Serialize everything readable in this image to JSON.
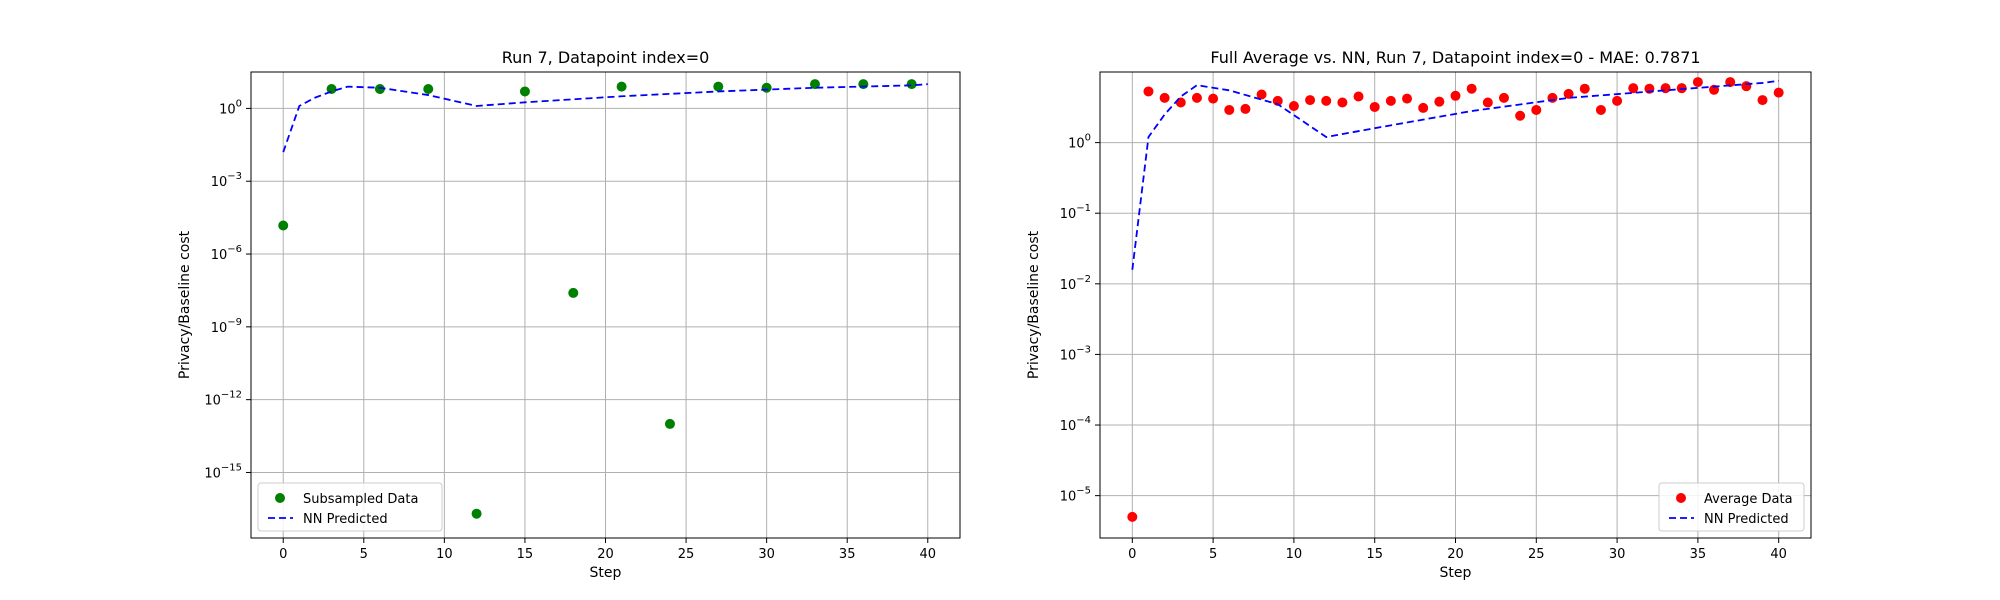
{
  "chart_data": [
    {
      "type": "scatter",
      "title": "Run 7, Datapoint index=0",
      "xlabel": "Step",
      "ylabel": "Privacy/Baseline cost",
      "xlim": [
        -2,
        42
      ],
      "ylim_exp": [
        -17.7,
        1.5
      ],
      "y_scale": "log",
      "grid": true,
      "legend_position": "lower-left",
      "x_ticks": [
        0,
        5,
        10,
        15,
        20,
        25,
        30,
        35,
        40
      ],
      "y_tick_exps": [
        0,
        -3,
        -6,
        -9,
        -12,
        -15
      ],
      "series": [
        {
          "name": "Subsampled Data",
          "kind": "scatter",
          "color": "#008000",
          "points": [
            [
              0,
              1.5e-05
            ],
            [
              3,
              6.3
            ],
            [
              6,
              6.3
            ],
            [
              9,
              6.3
            ],
            [
              12,
              2e-17
            ],
            [
              15,
              5.0
            ],
            [
              18,
              2.5e-08
            ],
            [
              21,
              7.9
            ],
            [
              24,
              1e-13
            ],
            [
              27,
              7.9
            ],
            [
              30,
              7.1
            ],
            [
              33,
              10.0
            ],
            [
              36,
              10.0
            ],
            [
              39,
              10.0
            ]
          ]
        },
        {
          "name": "NN Predicted",
          "kind": "line",
          "color": "#0000ff",
          "dash": "dashed",
          "points": [
            [
              0,
              0.0158
            ],
            [
              1,
              1.26
            ],
            [
              2,
              2.82
            ],
            [
              3,
              5.0
            ],
            [
              4,
              7.9
            ],
            [
              6,
              7.1
            ],
            [
              9,
              3.55
            ],
            [
              12,
              1.26
            ],
            [
              15,
              1.78
            ],
            [
              21,
              3.16
            ],
            [
              27,
              5.0
            ],
            [
              33,
              7.1
            ],
            [
              39,
              8.9
            ],
            [
              40,
              10.0
            ]
          ]
        }
      ]
    },
    {
      "type": "scatter",
      "title": "Full Average vs. NN, Run 7, Datapoint index=0 - MAE: 0.7871",
      "xlabel": "Step",
      "ylabel": "Privacy/Baseline cost",
      "xlim": [
        -2,
        42
      ],
      "ylim_exp": [
        -5.6,
        1.0
      ],
      "y_scale": "log",
      "grid": true,
      "legend_position": "lower-right",
      "x_ticks": [
        0,
        5,
        10,
        15,
        20,
        25,
        30,
        35,
        40
      ],
      "y_tick_exps": [
        0,
        -1,
        -2,
        -3,
        -4,
        -5
      ],
      "series": [
        {
          "name": "Average Data",
          "kind": "scatter",
          "color": "#ff0000",
          "points": [
            [
              0,
              5e-06
            ],
            [
              1,
              5.3
            ],
            [
              2,
              4.3
            ],
            [
              3,
              3.7
            ],
            [
              4,
              4.3
            ],
            [
              5,
              4.2
            ],
            [
              6,
              2.9
            ],
            [
              7,
              3.0
            ],
            [
              8,
              4.8
            ],
            [
              9,
              3.9
            ],
            [
              10,
              3.3
            ],
            [
              11,
              4.0
            ],
            [
              12,
              3.9
            ],
            [
              13,
              3.7
            ],
            [
              14,
              4.5
            ],
            [
              15,
              3.2
            ],
            [
              16,
              3.9
            ],
            [
              17,
              4.2
            ],
            [
              18,
              3.1
            ],
            [
              19,
              3.8
            ],
            [
              20,
              4.6
            ],
            [
              21,
              5.8
            ],
            [
              22,
              3.7
            ],
            [
              23,
              4.3
            ],
            [
              24,
              2.4
            ],
            [
              25,
              2.9
            ],
            [
              26,
              4.3
            ],
            [
              27,
              4.9
            ],
            [
              28,
              5.8
            ],
            [
              29,
              2.9
            ],
            [
              30,
              3.9
            ],
            [
              31,
              5.9
            ],
            [
              32,
              5.8
            ],
            [
              33,
              5.9
            ],
            [
              34,
              5.9
            ],
            [
              35,
              7.2
            ],
            [
              36,
              5.6
            ],
            [
              37,
              7.2
            ],
            [
              38,
              6.3
            ],
            [
              39,
              4.0
            ],
            [
              40,
              5.1
            ]
          ]
        },
        {
          "name": "NN Predicted",
          "kind": "line",
          "color": "#0000ff",
          "dash": "dashed",
          "points": [
            [
              0,
              0.0158
            ],
            [
              1,
              1.2
            ],
            [
              2,
              2.5
            ],
            [
              3,
              4.5
            ],
            [
              4,
              6.5
            ],
            [
              6,
              5.5
            ],
            [
              9,
              3.5
            ],
            [
              12,
              1.2
            ],
            [
              15,
              1.6
            ],
            [
              21,
              2.8
            ],
            [
              27,
              4.3
            ],
            [
              33,
              5.5
            ],
            [
              39,
              7.0
            ],
            [
              40,
              7.5
            ]
          ]
        }
      ]
    }
  ]
}
